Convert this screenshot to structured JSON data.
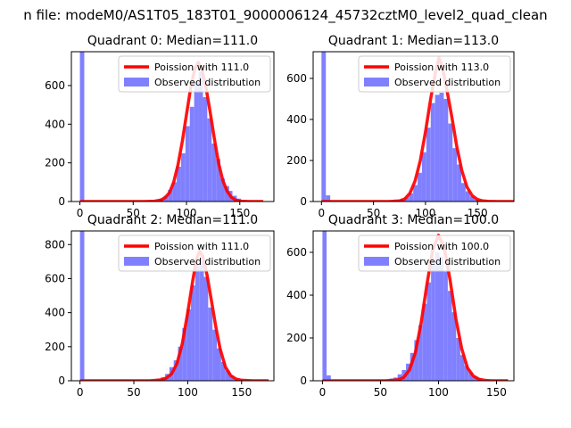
{
  "suptitle": "n file: modeM0/AS1T05_183T01_9000006124_45732cztM0_level2_quad_clean",
  "chart_data": [
    {
      "type": "bar",
      "title": "Quadrant 0: Median=111.0",
      "median": 111.0,
      "xlim": [
        -8,
        182
      ],
      "ylim": [
        0,
        775
      ],
      "xticks": [
        0,
        50,
        100,
        150
      ],
      "yticks": [
        0,
        200,
        400,
        600
      ],
      "bin_width": 4.1,
      "legend_position": "upper right",
      "series": [
        {
          "name": "Poission with 111.0",
          "kind": "line",
          "color": "#ff0000",
          "x": [
            0,
            60,
            70,
            76,
            80,
            84,
            88,
            92,
            96,
            100,
            104,
            108,
            111,
            114,
            118,
            122,
            126,
            130,
            134,
            138,
            142,
            146,
            150,
            160,
            172
          ],
          "values": [
            0,
            0,
            2,
            8,
            20,
            45,
            100,
            190,
            310,
            450,
            590,
            690,
            720,
            690,
            600,
            470,
            330,
            200,
            110,
            55,
            22,
            8,
            2,
            0,
            0
          ]
        },
        {
          "name": "Observed distribution",
          "kind": "histogram",
          "color": "#8080ff",
          "x": [
            0,
            74.4,
            78.5,
            82.6,
            86.7,
            90.8,
            94.9,
            99.0,
            103.1,
            107.2,
            111.3,
            115.4,
            119.5,
            123.6,
            127.7,
            131.8,
            135.9,
            139.0,
            143.1,
            147.2,
            151.3
          ],
          "values": [
            775,
            15,
            30,
            60,
            100,
            180,
            250,
            390,
            490,
            620,
            670,
            540,
            430,
            300,
            220,
            120,
            80,
            55,
            30,
            15,
            5
          ]
        }
      ]
    },
    {
      "type": "bar",
      "title": "Quadrant 1: Median=113.0",
      "median": 113.0,
      "xlim": [
        -8,
        185
      ],
      "ylim": [
        0,
        730
      ],
      "xticks": [
        0,
        50,
        100,
        150
      ],
      "yticks": [
        0,
        200,
        400,
        600
      ],
      "bin_width": 4.2,
      "legend_position": "upper right",
      "series": [
        {
          "name": "Poission with 113.0",
          "kind": "line",
          "color": "#ff0000",
          "x": [
            0,
            65,
            75,
            80,
            85,
            90,
            95,
            100,
            105,
            110,
            113,
            116,
            120,
            125,
            130,
            135,
            140,
            145,
            150,
            155,
            160,
            170,
            185
          ],
          "values": [
            0,
            0,
            3,
            12,
            40,
            100,
            200,
            340,
            500,
            640,
            700,
            660,
            560,
            420,
            270,
            150,
            70,
            28,
            10,
            3,
            1,
            0,
            0
          ]
        },
        {
          "name": "Observed distribution",
          "kind": "histogram",
          "color": "#8080ff",
          "x": [
            0,
            4.2,
            63.0,
            67.2,
            71.4,
            75.6,
            79.8,
            84.0,
            88.2,
            92.4,
            96.6,
            100.8,
            105.0,
            109.2,
            113.4,
            117.6,
            121.8,
            126.0,
            130.2,
            134.4,
            138.6,
            142.8,
            147.0
          ],
          "values": [
            730,
            30,
            3,
            5,
            8,
            10,
            20,
            40,
            80,
            140,
            240,
            360,
            480,
            520,
            530,
            500,
            380,
            260,
            180,
            90,
            50,
            25,
            10
          ]
        }
      ]
    },
    {
      "type": "bar",
      "title": "Quadrant 2: Median=111.0",
      "median": 111.0,
      "xlim": [
        -8,
        180
      ],
      "ylim": [
        0,
        880
      ],
      "xticks": [
        0,
        50,
        100,
        150
      ],
      "yticks": [
        0,
        200,
        400,
        600,
        800
      ],
      "bin_width": 4.0,
      "legend_position": "upper right",
      "series": [
        {
          "name": "Poission with 111.0",
          "kind": "line",
          "color": "#ff0000",
          "x": [
            0,
            65,
            75,
            80,
            85,
            90,
            95,
            100,
            105,
            108,
            111,
            114,
            118,
            122,
            126,
            130,
            135,
            140,
            145,
            150,
            160,
            175
          ],
          "values": [
            0,
            0,
            5,
            15,
            40,
            100,
            220,
            400,
            600,
            710,
            760,
            730,
            620,
            470,
            320,
            190,
            80,
            30,
            10,
            3,
            0,
            0
          ]
        },
        {
          "name": "Observed distribution",
          "kind": "histogram",
          "color": "#8080ff",
          "x": [
            0,
            71.0,
            75.0,
            79.0,
            83.0,
            87.0,
            91.0,
            95.0,
            99.0,
            103.0,
            107.0,
            111.0,
            115.0,
            119.0,
            123.0,
            127.0,
            131.0,
            135.0,
            139.0,
            143.0,
            147.0
          ],
          "values": [
            880,
            10,
            20,
            40,
            80,
            120,
            200,
            310,
            420,
            560,
            680,
            700,
            610,
            430,
            300,
            190,
            110,
            60,
            30,
            12,
            5
          ]
        }
      ]
    },
    {
      "type": "bar",
      "title": "Quadrant 3: Median=100.0",
      "median": 100.0,
      "xlim": [
        -8,
        165
      ],
      "ylim": [
        0,
        700
      ],
      "xticks": [
        0,
        50,
        100,
        150
      ],
      "yticks": [
        0,
        200,
        400,
        600
      ],
      "bin_width": 3.6,
      "legend_position": "upper right",
      "series": [
        {
          "name": "Poission with 100.0",
          "kind": "line",
          "color": "#ff0000",
          "x": [
            0,
            55,
            65,
            70,
            75,
            80,
            85,
            90,
            95,
            100,
            105,
            110,
            115,
            120,
            125,
            130,
            135,
            140,
            145,
            160
          ],
          "values": [
            0,
            0,
            4,
            15,
            50,
            130,
            270,
            450,
            610,
            680,
            620,
            470,
            290,
            150,
            60,
            22,
            7,
            2,
            0,
            0
          ]
        },
        {
          "name": "Observed distribution",
          "kind": "histogram",
          "color": "#8080ff",
          "x": [
            0,
            3.6,
            54.0,
            57.6,
            61.2,
            64.8,
            68.4,
            72.0,
            75.6,
            79.2,
            82.8,
            86.4,
            90.0,
            93.6,
            97.2,
            100.8,
            104.4,
            108.0,
            111.6,
            115.2,
            118.8,
            122.4,
            126.0,
            129.6,
            133.2
          ],
          "values": [
            700,
            25,
            5,
            10,
            15,
            30,
            50,
            80,
            130,
            190,
            260,
            360,
            460,
            540,
            600,
            580,
            510,
            420,
            320,
            200,
            120,
            70,
            40,
            20,
            10
          ]
        }
      ]
    }
  ]
}
